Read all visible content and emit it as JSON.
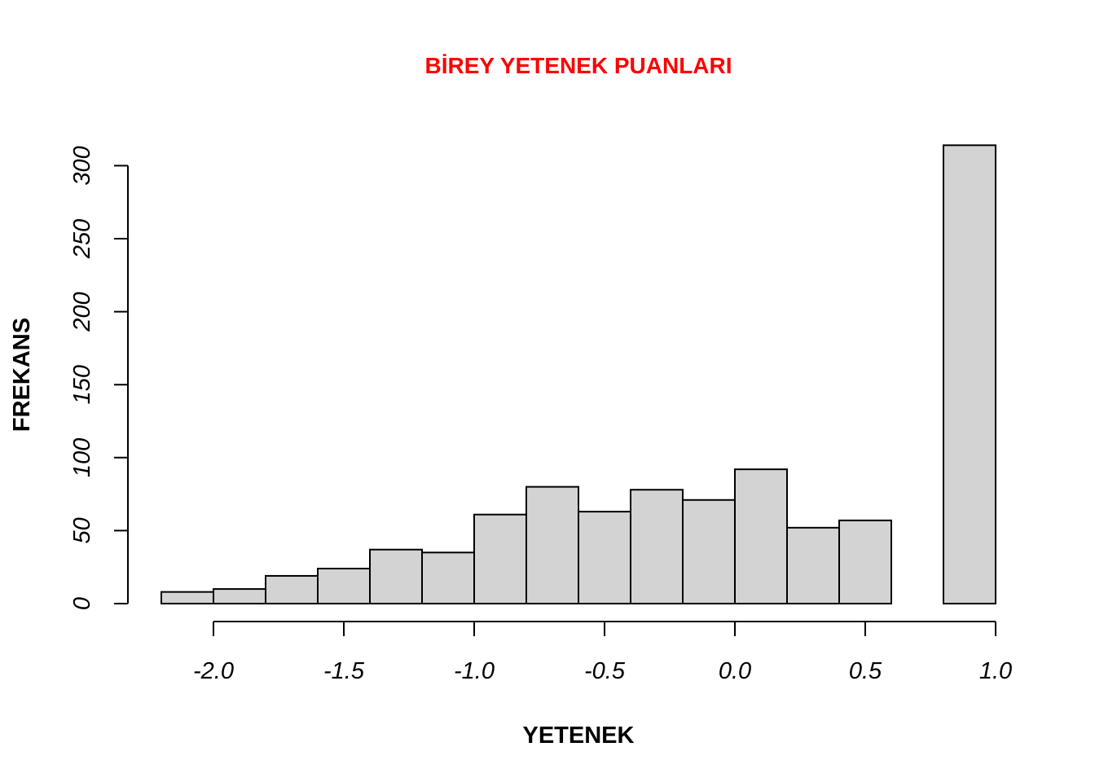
{
  "chart_data": {
    "type": "bar",
    "title": "BİREY YETENEK PUANLARI",
    "title_color": "#ff0000",
    "xlabel": "YETENEK",
    "ylabel": "FREKANS",
    "bar_fill": "#d3d3d3",
    "bar_stroke": "#000000",
    "bins": [
      {
        "start": -2.2,
        "end": -2.0,
        "count": 8
      },
      {
        "start": -2.0,
        "end": -1.8,
        "count": 10
      },
      {
        "start": -1.8,
        "end": -1.6,
        "count": 19
      },
      {
        "start": -1.6,
        "end": -1.4,
        "count": 24
      },
      {
        "start": -1.4,
        "end": -1.2,
        "count": 37
      },
      {
        "start": -1.2,
        "end": -1.0,
        "count": 35
      },
      {
        "start": -1.0,
        "end": -0.8,
        "count": 61
      },
      {
        "start": -0.8,
        "end": -0.6,
        "count": 80
      },
      {
        "start": -0.6,
        "end": -0.4,
        "count": 63
      },
      {
        "start": -0.4,
        "end": -0.2,
        "count": 78
      },
      {
        "start": -0.2,
        "end": 0.0,
        "count": 71
      },
      {
        "start": 0.0,
        "end": 0.2,
        "count": 92
      },
      {
        "start": 0.2,
        "end": 0.4,
        "count": 52
      },
      {
        "start": 0.4,
        "end": 0.6,
        "count": 57
      },
      {
        "start": 0.6,
        "end": 0.8,
        "count": 0
      },
      {
        "start": 0.8,
        "end": 1.0,
        "count": 314
      }
    ],
    "xlim": [
      -2.2,
      1.0
    ],
    "ylim": [
      0,
      314
    ],
    "x_ticks": [
      {
        "value": -2.0,
        "label": "-2.0"
      },
      {
        "value": -1.5,
        "label": "-1.5"
      },
      {
        "value": -1.0,
        "label": "-1.0"
      },
      {
        "value": -0.5,
        "label": "-0.5"
      },
      {
        "value": 0.0,
        "label": "0.0"
      },
      {
        "value": 0.5,
        "label": "0.5"
      },
      {
        "value": 1.0,
        "label": "1.0"
      }
    ],
    "y_ticks": [
      {
        "value": 0,
        "label": "0"
      },
      {
        "value": 50,
        "label": "50"
      },
      {
        "value": 100,
        "label": "100"
      },
      {
        "value": 150,
        "label": "150"
      },
      {
        "value": 200,
        "label": "200"
      },
      {
        "value": 250,
        "label": "250"
      },
      {
        "value": 300,
        "label": "300"
      }
    ],
    "grid": false,
    "legend": "none"
  }
}
